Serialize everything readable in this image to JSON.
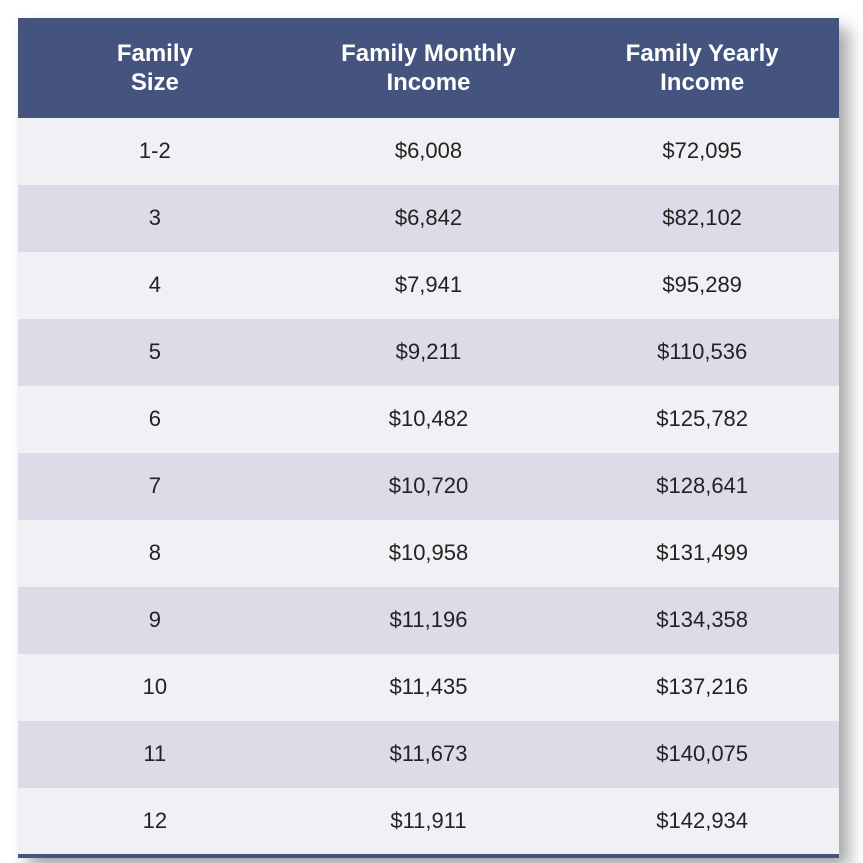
{
  "table": {
    "type": "table",
    "header_bg": "#44547f",
    "header_text_color": "#ffffff",
    "row_odd_bg": "#f1f1f5",
    "row_even_bg": "#dcdce8",
    "bottom_border_color": "#44547f",
    "header_fontsize": 24,
    "cell_fontsize": 22,
    "columns": [
      {
        "label_line1": "Family",
        "label_line2": "Size"
      },
      {
        "label_line1": "Family Monthly",
        "label_line2": "Income"
      },
      {
        "label_line1": "Family Yearly",
        "label_line2": "Income"
      }
    ],
    "rows": [
      {
        "size": "1-2",
        "monthly": "$6,008",
        "yearly": "$72,095"
      },
      {
        "size": "3",
        "monthly": "$6,842",
        "yearly": "$82,102"
      },
      {
        "size": "4",
        "monthly": "$7,941",
        "yearly": "$95,289"
      },
      {
        "size": "5",
        "monthly": "$9,211",
        "yearly": "$110,536"
      },
      {
        "size": "6",
        "monthly": "$10,482",
        "yearly": "$125,782"
      },
      {
        "size": "7",
        "monthly": "$10,720",
        "yearly": "$128,641"
      },
      {
        "size": "8",
        "monthly": "$10,958",
        "yearly": "$131,499"
      },
      {
        "size": "9",
        "monthly": "$11,196",
        "yearly": "$134,358"
      },
      {
        "size": "10",
        "monthly": "$11,435",
        "yearly": "$137,216"
      },
      {
        "size": "11",
        "monthly": "$11,673",
        "yearly": "$140,075"
      },
      {
        "size": "12",
        "monthly": "$11,911",
        "yearly": "$142,934"
      }
    ]
  }
}
